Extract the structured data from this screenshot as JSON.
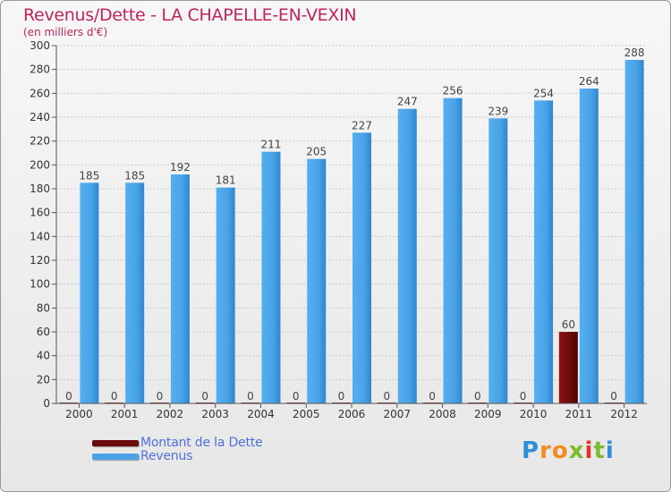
{
  "title": "Revenus/Dette - LA CHAPELLE-EN-VEXIN",
  "subtitle": "(en milliers d'€)",
  "brand": "Proxiti",
  "chart_data": {
    "type": "bar",
    "categories": [
      "2000",
      "2001",
      "2002",
      "2003",
      "2004",
      "2005",
      "2006",
      "2007",
      "2008",
      "2009",
      "2010",
      "2011",
      "2012"
    ],
    "series": [
      {
        "name": "Montant de la Dette",
        "values": [
          0,
          0,
          0,
          0,
          0,
          0,
          0,
          0,
          0,
          0,
          0,
          60,
          0
        ],
        "color": "#6b0a0a"
      },
      {
        "name": "Revenus",
        "values": [
          185,
          185,
          192,
          181,
          211,
          205,
          227,
          247,
          256,
          239,
          254,
          264,
          288
        ],
        "color": "#4aa3e6"
      }
    ],
    "ylim": [
      0,
      300
    ],
    "ytick_step": 20,
    "grid": true,
    "legend_position": "bottom-left",
    "label_color": "#444444"
  }
}
